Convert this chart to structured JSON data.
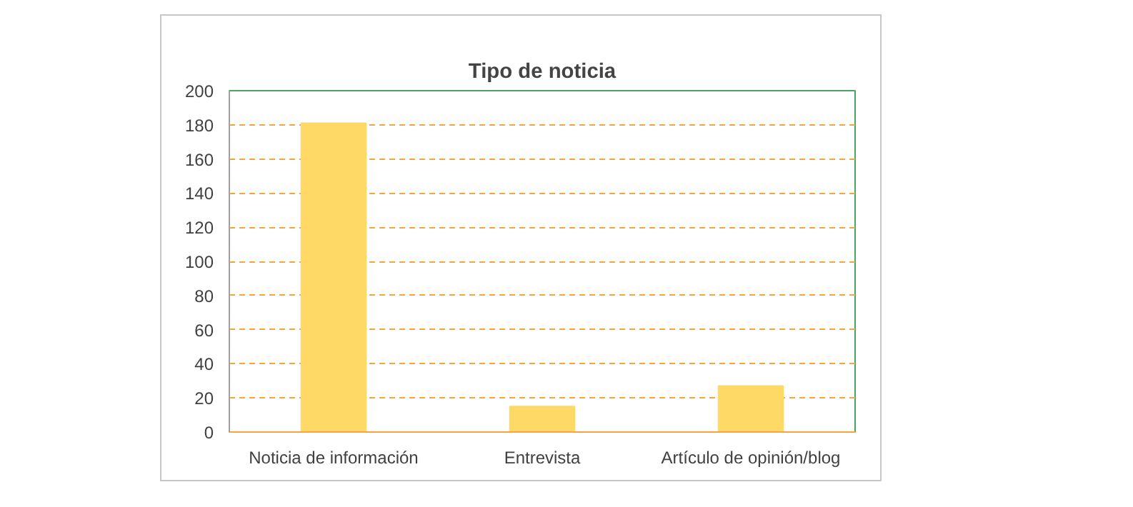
{
  "chart_data": {
    "type": "bar",
    "title": "Tipo de noticia",
    "categories": [
      "Noticia de información",
      "Entrevista",
      "Artículo de opinión/blog"
    ],
    "values": [
      181,
      15,
      27
    ],
    "color": "#ffd966",
    "ylim": [
      0,
      200
    ],
    "yticks": [
      0,
      20,
      40,
      60,
      80,
      100,
      120,
      140,
      160,
      180,
      200
    ],
    "grid": "y"
  }
}
